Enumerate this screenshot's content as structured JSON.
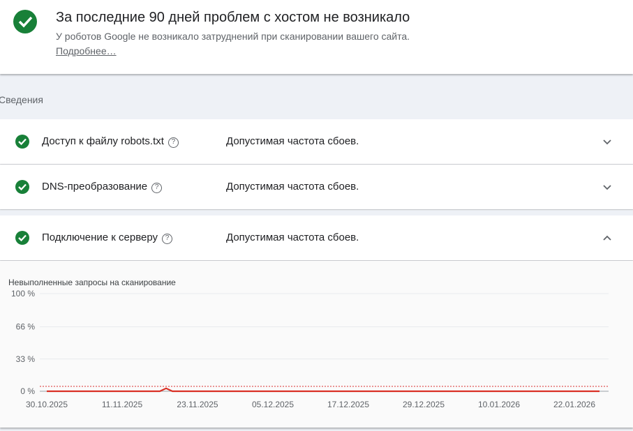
{
  "summary": {
    "title": "За последние 90 дней проблем с хостом не возникало",
    "subtitle": "У роботов Google не возникало затруднений при сканировании вашего сайта.",
    "more_link": "Подробнее…"
  },
  "section_label": "Сведения",
  "rows": [
    {
      "name": "Доступ к файлу robots.txt",
      "status": "Допустимая частота сбоев.",
      "expanded": false
    },
    {
      "name": "DNS-преобразование",
      "status": "Допустимая частота сбоев.",
      "expanded": false
    },
    {
      "name": "Подключение к серверу",
      "status": "Допустимая частота сбоев.",
      "expanded": true
    }
  ],
  "colors": {
    "ok": "#188038",
    "line": "#d93025"
  },
  "chart_data": {
    "type": "line",
    "title": "Невыполненные запросы на сканирование",
    "yticks": [
      "100 %",
      "66 %",
      "33 %",
      "0 %"
    ],
    "ylim": [
      0,
      100
    ],
    "xticks": [
      "30.10.2025",
      "11.11.2025",
      "23.11.2025",
      "05.12.2025",
      "17.12.2025",
      "29.12.2025",
      "10.01.2026",
      "22.01.2026"
    ],
    "threshold": 5,
    "points": [
      [
        "30.10.2025",
        0
      ],
      [
        "17.11.2025",
        0
      ],
      [
        "18.11.2025",
        3
      ],
      [
        "19.11.2025",
        0
      ],
      [
        "26.01.2026",
        0
      ]
    ],
    "grid": true
  }
}
